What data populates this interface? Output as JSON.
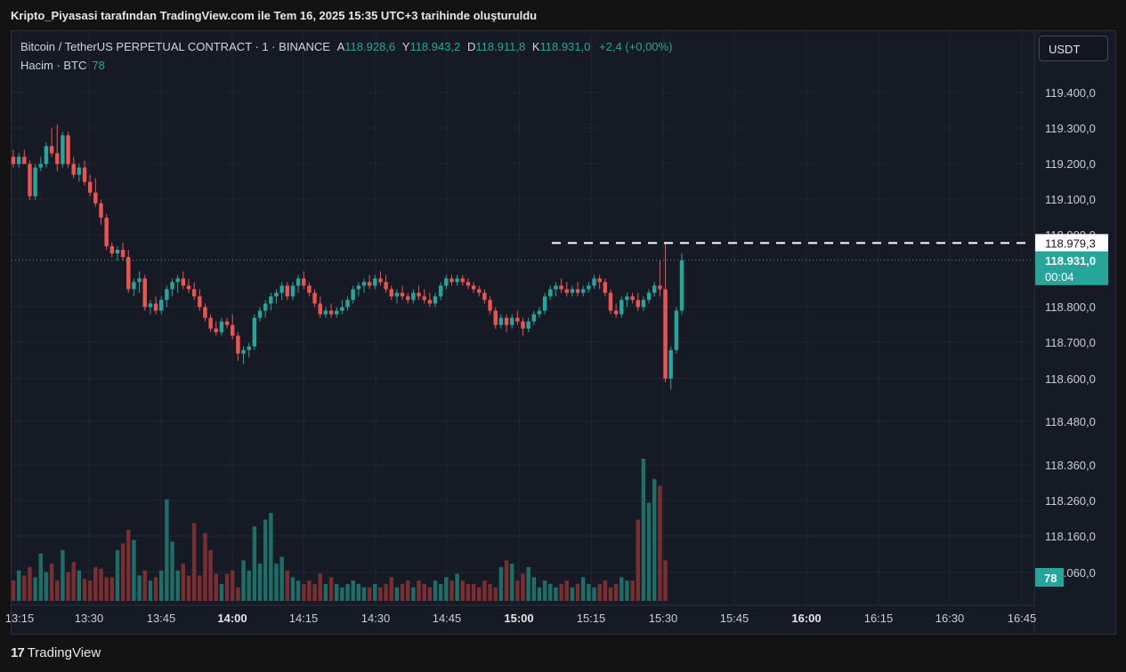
{
  "caption": "Kripto_Piyasasi tarafından TradingView.com ile Tem 16, 2025 15:35 UTC+3 tarihinde oluşturuldu",
  "legend": {
    "symbol": "Bitcoin / TetherUS PERPETUAL CONTRACT · 1 · BINANCE",
    "open_label": "A",
    "open": "118.928,6",
    "high_label": "Y",
    "high": "118.943,2",
    "low_label": "D",
    "low": "118.911,8",
    "close_label": "K",
    "close": "118.931,0",
    "change": "+2,4 (+0,00%)",
    "volume_label": "Hacim · BTC",
    "volume_value": "78"
  },
  "currency_button": "USDT",
  "brand": {
    "logo": "17",
    "name": "TradingView"
  },
  "colors": {
    "up": "#26a69a",
    "down": "#ef5350",
    "up_volume": "#1e6e68",
    "down_volume": "#7a2e2f",
    "background": "#161a25",
    "grid": "#232734"
  },
  "chart_data": {
    "type": "candlestick",
    "title": "Bitcoin / TetherUS PERPETUAL CONTRACT · 1 · BINANCE",
    "interval": "1",
    "price_ticks": [
      "119.400,0",
      "119.300,0",
      "119.200,0",
      "119.100,0",
      "118.900,0",
      "118.800,0",
      "118.700,0",
      "118.600,0",
      "118.480,0",
      "118.360,0",
      "118.260,0",
      "118.160,0",
      "118.060,0"
    ],
    "time_ticks": [
      {
        "label": "13:15",
        "bold": false
      },
      {
        "label": "13:30",
        "bold": false
      },
      {
        "label": "13:45",
        "bold": false
      },
      {
        "label": "14:00",
        "bold": true
      },
      {
        "label": "14:15",
        "bold": false
      },
      {
        "label": "14:30",
        "bold": false
      },
      {
        "label": "14:45",
        "bold": false
      },
      {
        "label": "15:00",
        "bold": true
      },
      {
        "label": "15:15",
        "bold": false
      },
      {
        "label": "15:30",
        "bold": false
      },
      {
        "label": "15:45",
        "bold": false
      },
      {
        "label": "16:00",
        "bold": true
      },
      {
        "label": "16:15",
        "bold": false
      },
      {
        "label": "16:30",
        "bold": false
      },
      {
        "label": "16:45",
        "bold": false
      }
    ],
    "high_line": {
      "value": 118979.3,
      "label": "118.979,3"
    },
    "last_price": {
      "value": 118931.0,
      "label": "118.931,0",
      "countdown": "00:04"
    },
    "volume_label": "78",
    "candles": [
      [
        119220,
        119240,
        119190,
        119200
      ],
      [
        119200,
        119230,
        119190,
        119220
      ],
      [
        119220,
        119240,
        119200,
        119200
      ],
      [
        119200,
        119210,
        119100,
        119110
      ],
      [
        119110,
        119200,
        119100,
        119190
      ],
      [
        119190,
        119220,
        119180,
        119200
      ],
      [
        119200,
        119260,
        119190,
        119250
      ],
      [
        119250,
        119300,
        119220,
        119230
      ],
      [
        119230,
        119310,
        119180,
        119200
      ],
      [
        119200,
        119290,
        119190,
        119280
      ],
      [
        119280,
        119290,
        119190,
        119200
      ],
      [
        119200,
        119220,
        119160,
        119170
      ],
      [
        119170,
        119200,
        119150,
        119190
      ],
      [
        119190,
        119210,
        119140,
        119150
      ],
      [
        119150,
        119170,
        119110,
        119120
      ],
      [
        119120,
        119160,
        119080,
        119090
      ],
      [
        119090,
        119100,
        119030,
        119050
      ],
      [
        119050,
        119060,
        118960,
        118970
      ],
      [
        118970,
        118980,
        118940,
        118950
      ],
      [
        118950,
        118970,
        118930,
        118960
      ],
      [
        118960,
        118980,
        118930,
        118940
      ],
      [
        118940,
        118960,
        118840,
        118850
      ],
      [
        118850,
        118880,
        118830,
        118870
      ],
      [
        118870,
        118900,
        118840,
        118880
      ],
      [
        118880,
        118890,
        118790,
        118800
      ],
      [
        118800,
        118820,
        118780,
        118810
      ],
      [
        118810,
        118830,
        118780,
        118790
      ],
      [
        118790,
        118830,
        118780,
        118820
      ],
      [
        118820,
        118860,
        118800,
        118850
      ],
      [
        118850,
        118880,
        118830,
        118870
      ],
      [
        118870,
        118890,
        118840,
        118880
      ],
      [
        118880,
        118900,
        118850,
        118860
      ],
      [
        118860,
        118880,
        118840,
        118850
      ],
      [
        118850,
        118870,
        118820,
        118830
      ],
      [
        118830,
        118850,
        118790,
        118800
      ],
      [
        118800,
        118810,
        118760,
        118770
      ],
      [
        118770,
        118780,
        118730,
        118740
      ],
      [
        118740,
        118760,
        118720,
        118730
      ],
      [
        118730,
        118770,
        118720,
        118760
      ],
      [
        118760,
        118770,
        118740,
        118750
      ],
      [
        118750,
        118780,
        118710,
        118720
      ],
      [
        118720,
        118730,
        118650,
        118670
      ],
      [
        118670,
        118690,
        118640,
        118680
      ],
      [
        118680,
        118700,
        118660,
        118690
      ],
      [
        118690,
        118780,
        118680,
        118770
      ],
      [
        118770,
        118800,
        118760,
        118790
      ],
      [
        118790,
        118820,
        118770,
        118810
      ],
      [
        118810,
        118840,
        118790,
        118830
      ],
      [
        118830,
        118850,
        118810,
        118840
      ],
      [
        118840,
        118870,
        118820,
        118860
      ],
      [
        118860,
        118870,
        118820,
        118830
      ],
      [
        118830,
        118870,
        118820,
        118860
      ],
      [
        118860,
        118890,
        118840,
        118880
      ],
      [
        118880,
        118900,
        118850,
        118860
      ],
      [
        118860,
        118870,
        118830,
        118840
      ],
      [
        118840,
        118850,
        118800,
        118810
      ],
      [
        118810,
        118830,
        118770,
        118780
      ],
      [
        118780,
        118800,
        118770,
        118790
      ],
      [
        118790,
        118810,
        118770,
        118780
      ],
      [
        118780,
        118800,
        118770,
        118790
      ],
      [
        118790,
        118820,
        118780,
        118800
      ],
      [
        118800,
        118830,
        118790,
        118820
      ],
      [
        118820,
        118860,
        118810,
        118850
      ],
      [
        118850,
        118870,
        118830,
        118860
      ],
      [
        118860,
        118880,
        118840,
        118870
      ],
      [
        118870,
        118890,
        118850,
        118860
      ],
      [
        118860,
        118890,
        118850,
        118880
      ],
      [
        118880,
        118900,
        118860,
        118870
      ],
      [
        118870,
        118890,
        118840,
        118850
      ],
      [
        118850,
        118860,
        118820,
        118830
      ],
      [
        118830,
        118850,
        118810,
        118840
      ],
      [
        118840,
        118860,
        118820,
        118830
      ],
      [
        118830,
        118840,
        118810,
        118820
      ],
      [
        118820,
        118850,
        118810,
        118840
      ],
      [
        118840,
        118860,
        118820,
        118830
      ],
      [
        118830,
        118850,
        118810,
        118820
      ],
      [
        118820,
        118840,
        118800,
        118810
      ],
      [
        118810,
        118840,
        118800,
        118830
      ],
      [
        118830,
        118870,
        118820,
        118860
      ],
      [
        118860,
        118890,
        118850,
        118880
      ],
      [
        118880,
        118890,
        118860,
        118870
      ],
      [
        118870,
        118890,
        118860,
        118880
      ],
      [
        118880,
        118890,
        118860,
        118870
      ],
      [
        118870,
        118880,
        118850,
        118860
      ],
      [
        118860,
        118870,
        118840,
        118850
      ],
      [
        118850,
        118860,
        118830,
        118840
      ],
      [
        118840,
        118850,
        118810,
        118820
      ],
      [
        118820,
        118830,
        118780,
        118790
      ],
      [
        118790,
        118800,
        118740,
        118750
      ],
      [
        118750,
        118780,
        118740,
        118770
      ],
      [
        118770,
        118780,
        118730,
        118750
      ],
      [
        118750,
        118780,
        118740,
        118770
      ],
      [
        118770,
        118790,
        118750,
        118760
      ],
      [
        118760,
        118770,
        118720,
        118740
      ],
      [
        118740,
        118770,
        118730,
        118760
      ],
      [
        118760,
        118790,
        118750,
        118780
      ],
      [
        118780,
        118800,
        118770,
        118790
      ],
      [
        118790,
        118840,
        118780,
        118830
      ],
      [
        118830,
        118860,
        118820,
        118850
      ],
      [
        118850,
        118870,
        118830,
        118860
      ],
      [
        118860,
        118880,
        118840,
        118850
      ],
      [
        118850,
        118870,
        118830,
        118840
      ],
      [
        118840,
        118860,
        118830,
        118850
      ],
      [
        118850,
        118870,
        118830,
        118840
      ],
      [
        118840,
        118860,
        118830,
        118850
      ],
      [
        118850,
        118870,
        118840,
        118860
      ],
      [
        118860,
        118890,
        118850,
        118880
      ],
      [
        118880,
        118890,
        118850,
        118870
      ],
      [
        118870,
        118880,
        118830,
        118840
      ],
      [
        118840,
        118850,
        118780,
        118790
      ],
      [
        118790,
        118810,
        118770,
        118780
      ],
      [
        118780,
        118830,
        118770,
        118820
      ],
      [
        118820,
        118840,
        118800,
        118830
      ],
      [
        118830,
        118840,
        118810,
        118820
      ],
      [
        118820,
        118840,
        118790,
        118800
      ],
      [
        118800,
        118830,
        118790,
        118820
      ],
      [
        118820,
        118850,
        118810,
        118840
      ],
      [
        118840,
        118870,
        118830,
        118860
      ],
      [
        118860,
        118930,
        118830,
        118850
      ],
      [
        118850,
        118980,
        118590,
        118600
      ],
      [
        118600,
        118690,
        118570,
        118680
      ],
      [
        118680,
        118800,
        118670,
        118790
      ],
      [
        118790,
        118950,
        118780,
        118931
      ]
    ],
    "volumes": [
      12,
      18,
      15,
      20,
      14,
      28,
      17,
      22,
      12,
      30,
      17,
      23,
      18,
      13,
      12,
      20,
      19,
      14,
      14,
      30,
      34,
      42,
      36,
      15,
      18,
      12,
      14,
      18,
      60,
      35,
      18,
      22,
      15,
      46,
      15,
      40,
      30,
      16,
      10,
      16,
      18,
      8,
      24,
      18,
      44,
      22,
      48,
      52,
      22,
      26,
      18,
      14,
      12,
      10,
      12,
      10,
      16,
      10,
      14,
      10,
      8,
      10,
      12,
      10,
      8,
      8,
      10,
      8,
      10,
      14,
      8,
      10,
      12,
      8,
      12,
      10,
      8,
      12,
      10,
      14,
      12,
      16,
      12,
      10,
      10,
      8,
      12,
      10,
      8,
      20,
      24,
      22,
      12,
      16,
      20,
      14,
      8,
      12,
      10,
      8,
      10,
      12,
      8,
      10,
      14,
      10,
      8,
      10,
      12,
      8,
      10,
      14,
      12,
      12,
      48,
      84,
      58,
      72,
      68,
      24
    ]
  }
}
